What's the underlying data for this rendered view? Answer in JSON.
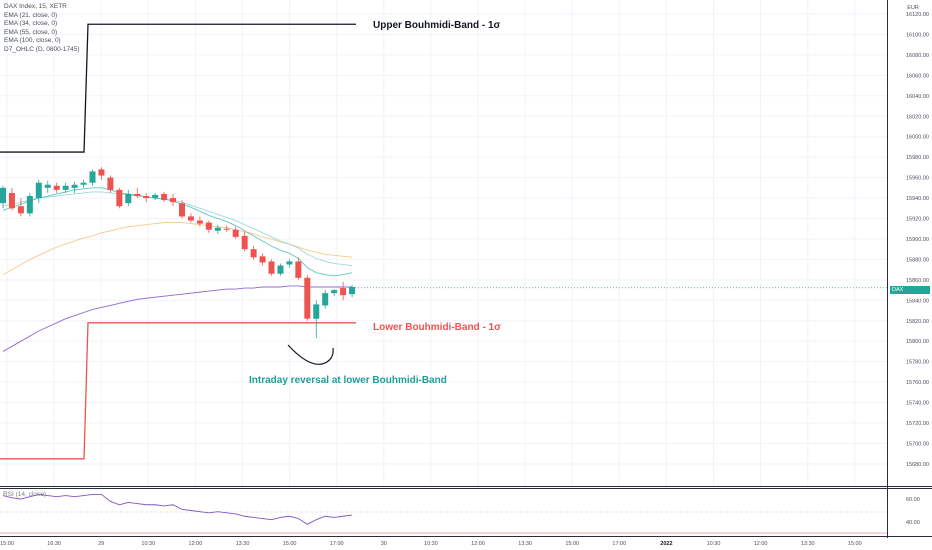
{
  "header": {
    "symbol": "DAX Index, 15, XETR",
    "indicators": [
      "EMA (21, close, 0)",
      "EMA (34, close, 0)",
      "EMA (55, close, 0)",
      "EMA (100, close, 0)",
      "D7_OHLC (D, 0800-1745)"
    ],
    "rsi_label": "RSI (14, close)"
  },
  "price_axis": {
    "currency": "EUR",
    "ticks": [
      "16120.00",
      "16100.00",
      "16080.00",
      "16060.00",
      "16040.00",
      "16020.00",
      "16000.00",
      "15980.00",
      "15960.00",
      "15940.00",
      "15920.00",
      "15900.00",
      "15880.00",
      "15860.00",
      "15840.00",
      "15820.00",
      "15800.00",
      "15780.00",
      "15760.00",
      "15740.00",
      "15720.00",
      "15700.00",
      "15680.00"
    ]
  },
  "rsi_axis": {
    "ticks": [
      "60.00",
      "40.00"
    ]
  },
  "time_axis": {
    "ticks": [
      "15:00",
      "16:30",
      "29",
      "10:30",
      "12:00",
      "13:30",
      "15:00",
      "17:00",
      "30",
      "10:30",
      "12:00",
      "13:30",
      "15:00",
      "17:00",
      "2022",
      "10:30",
      "12:00",
      "13:30",
      "15:00"
    ]
  },
  "current_price": {
    "ticker": "DAX",
    "price": "15852.250",
    "color": "#26a69a"
  },
  "colors": {
    "up": "#26a69a",
    "down": "#ef5350",
    "upper_band": "#131722",
    "lower_band": "#ef5350",
    "ema21": "#5ec6c2",
    "ema34": "#9ed9d6",
    "ema55": "#f5c98a",
    "ema100": "#8e6bcf",
    "rsi": "#7e57c2",
    "annotation": "#1e9e98"
  },
  "annotations": {
    "upper_band": "Upper Bouhmidi-Band - 1σ",
    "lower_band": "Lower Bouhmidi-Band - 1σ",
    "reversal": "Intraday reversal at lower Bouhmidi-Band"
  },
  "chart_data": {
    "type": "candlestick",
    "y_range": [
      15660,
      16120
    ],
    "bands": {
      "upper": {
        "before": 15985,
        "after": 16110
      },
      "lower": {
        "before": 15685,
        "after": 15818
      }
    },
    "candles": [
      {
        "o": 15935,
        "h": 15952,
        "l": 15930,
        "c": 15950
      },
      {
        "o": 15945,
        "h": 15950,
        "l": 15928,
        "c": 15930
      },
      {
        "o": 15932,
        "h": 15940,
        "l": 15922,
        "c": 15925
      },
      {
        "o": 15925,
        "h": 15945,
        "l": 15922,
        "c": 15942
      },
      {
        "o": 15940,
        "h": 15958,
        "l": 15935,
        "c": 15955
      },
      {
        "o": 15950,
        "h": 15957,
        "l": 15945,
        "c": 15953
      },
      {
        "o": 15952,
        "h": 15955,
        "l": 15945,
        "c": 15948
      },
      {
        "o": 15948,
        "h": 15955,
        "l": 15945,
        "c": 15952
      },
      {
        "o": 15950,
        "h": 15956,
        "l": 15945,
        "c": 15953
      },
      {
        "o": 15953,
        "h": 15958,
        "l": 15950,
        "c": 15955
      },
      {
        "o": 15955,
        "h": 15968,
        "l": 15952,
        "c": 15966
      },
      {
        "o": 15968,
        "h": 15970,
        "l": 15958,
        "c": 15962
      },
      {
        "o": 15960,
        "h": 15962,
        "l": 15945,
        "c": 15948
      },
      {
        "o": 15948,
        "h": 15950,
        "l": 15930,
        "c": 15932
      },
      {
        "o": 15935,
        "h": 15948,
        "l": 15932,
        "c": 15944
      },
      {
        "o": 15944,
        "h": 15950,
        "l": 15940,
        "c": 15942
      },
      {
        "o": 15942,
        "h": 15945,
        "l": 15936,
        "c": 15940
      },
      {
        "o": 15940,
        "h": 15945,
        "l": 15938,
        "c": 15943
      },
      {
        "o": 15944,
        "h": 15946,
        "l": 15936,
        "c": 15938
      },
      {
        "o": 15940,
        "h": 15944,
        "l": 15932,
        "c": 15936
      },
      {
        "o": 15935,
        "h": 15938,
        "l": 15920,
        "c": 15922
      },
      {
        "o": 15922,
        "h": 15925,
        "l": 15916,
        "c": 15918
      },
      {
        "o": 15918,
        "h": 15922,
        "l": 15912,
        "c": 15915
      },
      {
        "o": 15916,
        "h": 15918,
        "l": 15906,
        "c": 15909
      },
      {
        "o": 15908,
        "h": 15914,
        "l": 15905,
        "c": 15911
      },
      {
        "o": 15910,
        "h": 15913,
        "l": 15907,
        "c": 15909
      },
      {
        "o": 15909,
        "h": 15912,
        "l": 15900,
        "c": 15902
      },
      {
        "o": 15903,
        "h": 15907,
        "l": 15888,
        "c": 15890
      },
      {
        "o": 15890,
        "h": 15893,
        "l": 15880,
        "c": 15882
      },
      {
        "o": 15883,
        "h": 15886,
        "l": 15874,
        "c": 15877
      },
      {
        "o": 15878,
        "h": 15880,
        "l": 15864,
        "c": 15866
      },
      {
        "o": 15866,
        "h": 15876,
        "l": 15864,
        "c": 15874
      },
      {
        "o": 15875,
        "h": 15880,
        "l": 15872,
        "c": 15878
      },
      {
        "o": 15878,
        "h": 15882,
        "l": 15860,
        "c": 15862
      },
      {
        "o": 15862,
        "h": 15865,
        "l": 15820,
        "c": 15822
      },
      {
        "o": 15822,
        "h": 15840,
        "l": 15803,
        "c": 15836
      },
      {
        "o": 15835,
        "h": 15850,
        "l": 15832,
        "c": 15847
      },
      {
        "o": 15847,
        "h": 15851,
        "l": 15844,
        "c": 15850
      },
      {
        "o": 15852,
        "h": 15858,
        "l": 15840,
        "c": 15845
      },
      {
        "o": 15846,
        "h": 15855,
        "l": 15843,
        "c": 15853
      }
    ],
    "ema21": [
      15928,
      15931,
      15934,
      15937,
      15940,
      15942,
      15944,
      15946,
      15948,
      15949,
      15950,
      15950,
      15948,
      15945,
      15944,
      15943,
      15941,
      15940,
      15939,
      15937,
      15934,
      15931,
      15927,
      15923,
      15920,
      15917,
      15913,
      15908,
      15903,
      15898,
      15893,
      15889,
      15886,
      15881,
      15872,
      15867,
      15865,
      15864,
      15865,
      15867
    ],
    "ema34": [
      15932,
      15934,
      15936,
      15938,
      15940,
      15941,
      15942,
      15943,
      15944,
      15945,
      15946,
      15946,
      15945,
      15944,
      15943,
      15942,
      15941,
      15940,
      15939,
      15938,
      15936,
      15933,
      15930,
      15927,
      15924,
      15921,
      15918,
      15914,
      15910,
      15906,
      15902,
      15898,
      15895,
      15891,
      15885,
      15881,
      15878,
      15876,
      15875,
      15874
    ],
    "ema55": [
      15865,
      15870,
      15875,
      15880,
      15884,
      15888,
      15892,
      15895,
      15898,
      15901,
      15903,
      15906,
      15908,
      15910,
      15912,
      15913,
      15914,
      15915,
      15916,
      15916,
      15916,
      15915,
      15914,
      15913,
      15912,
      15911,
      15909,
      15907,
      15905,
      15902,
      15900,
      15897,
      15895,
      15892,
      15889,
      15887,
      15885,
      15884,
      15883,
      15882
    ],
    "ema100": [
      15790,
      15795,
      15800,
      15805,
      15810,
      15814,
      15818,
      15822,
      15825,
      15828,
      15831,
      15833,
      15835,
      15837,
      15839,
      15841,
      15842,
      15843,
      15844,
      15845,
      15846,
      15847,
      15848,
      15849,
      15850,
      15851,
      15851,
      15852,
      15852,
      15853,
      15853,
      15853,
      15854,
      15854,
      15853,
      15853,
      15853,
      15853,
      15853,
      15853
    ],
    "rsi": [
      63,
      61,
      60,
      62,
      64,
      63,
      62,
      63,
      62,
      63,
      64,
      64,
      58,
      55,
      57,
      56,
      55,
      55,
      54,
      55,
      51,
      50,
      49,
      48,
      49,
      48,
      47,
      45,
      44,
      43,
      42,
      44,
      45,
      43,
      38,
      42,
      45,
      44,
      45,
      46
    ]
  }
}
